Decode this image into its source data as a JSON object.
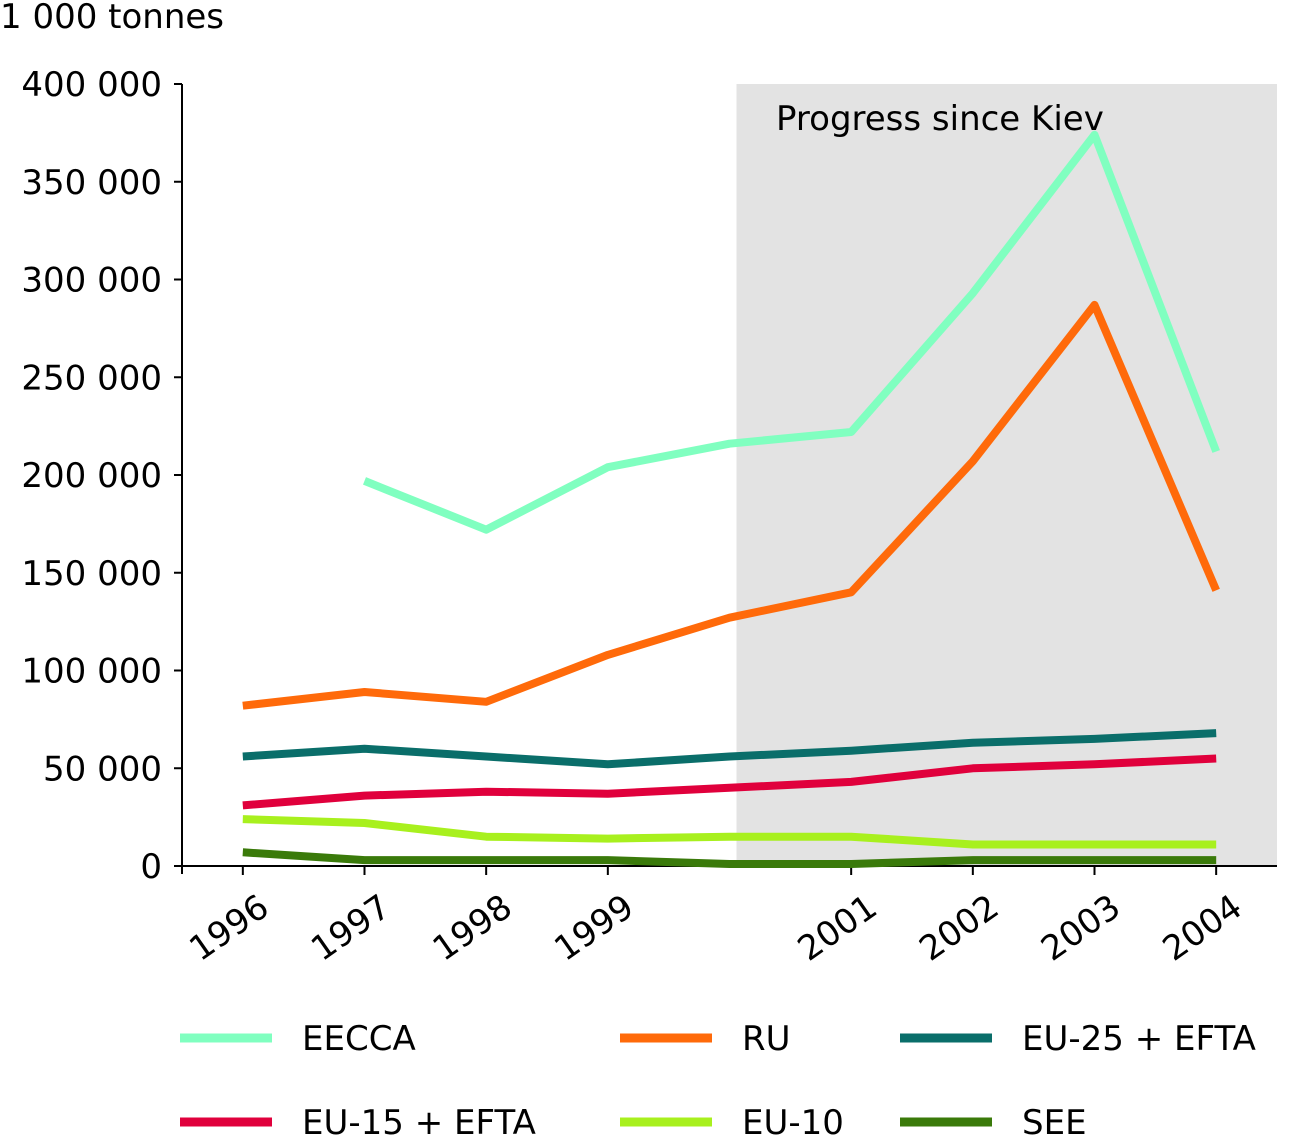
{
  "chart_data": {
    "type": "line",
    "unit_label": "1 000 tonnes",
    "shaded_region_label": "Progress since Kiev",
    "shaded_region_x": [
      2000,
      2005
    ],
    "x": [
      1996,
      1997,
      1998,
      1999,
      2000,
      2001,
      2002,
      2003,
      2004
    ],
    "x_tick_labels": [
      "1996",
      "1997",
      "1998",
      "1999",
      "2001",
      "2002",
      "2003",
      "2004"
    ],
    "x_tick_values": [
      1996,
      1997,
      1998,
      1999,
      2001,
      2002,
      2003,
      2004
    ],
    "xlim": [
      1995.5,
      2004.5
    ],
    "ylim": [
      0,
      400000
    ],
    "y_ticks": [
      0,
      50000,
      100000,
      150000,
      200000,
      250000,
      300000,
      350000,
      400000
    ],
    "y_tick_labels": [
      "0",
      "50 000",
      "100 000",
      "150 000",
      "200 000",
      "250 000",
      "300 000",
      "350 000",
      "400 000"
    ],
    "grid": false,
    "legend_placement": "bottom",
    "shade_color": "#e3e3e3",
    "series": [
      {
        "name": "EECCA",
        "color": "#80ffc0",
        "values": [
          null,
          197000,
          172000,
          204000,
          216000,
          222000,
          293000,
          374000,
          212000
        ]
      },
      {
        "name": "RU",
        "color": "#ff6a0a",
        "values": [
          82000,
          89000,
          84000,
          108000,
          127000,
          140000,
          207000,
          287000,
          141000
        ]
      },
      {
        "name": "EU-25 + EFTA",
        "color": "#0a6e6a",
        "values": [
          56000,
          60000,
          56000,
          52000,
          56000,
          59000,
          63000,
          65000,
          68000
        ]
      },
      {
        "name": "EU-15 + EFTA",
        "color": "#e0003c",
        "values": [
          31000,
          36000,
          38000,
          37000,
          40000,
          43000,
          50000,
          52000,
          55000
        ]
      },
      {
        "name": "EU-10",
        "color": "#a8f01e",
        "values": [
          24000,
          22000,
          15000,
          14000,
          15000,
          15000,
          11000,
          11000,
          11000
        ]
      },
      {
        "name": "SEE",
        "color": "#3a7a0a",
        "values": [
          7000,
          3000,
          3000,
          3000,
          1000,
          1000,
          3000,
          3000,
          3000
        ]
      }
    ]
  }
}
